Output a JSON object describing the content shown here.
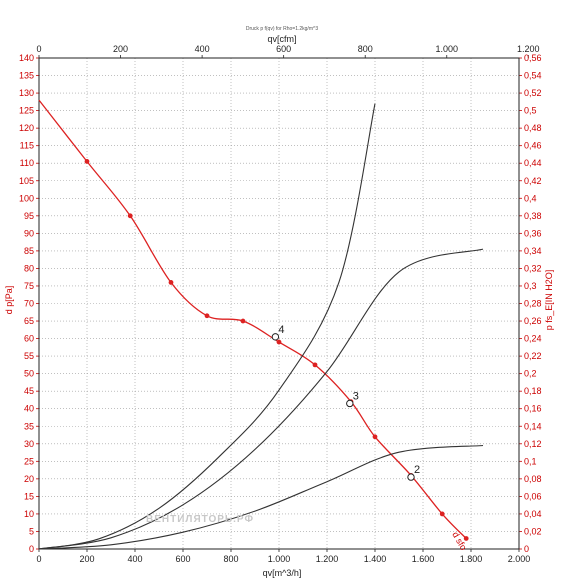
{
  "chart_data": {
    "type": "line",
    "title": "Druck p f(qv) for Rho=1.2kg/m^3",
    "xlabel_bottom": "qv[m^3/h]",
    "xlabel_top": "qv[cfm]",
    "ylabel_left": "d p[Pa]",
    "ylabel_right": "p fs_E[IN H2O]",
    "x_bottom_ticks": [
      "0",
      "200",
      "400",
      "600",
      "800",
      "1.000",
      "1.200",
      "1.400",
      "1.600",
      "1.800",
      "2.000"
    ],
    "x_top_ticks": [
      "0",
      "200",
      "400",
      "600",
      "800",
      "1.000",
      "1.200"
    ],
    "y_left_ticks": [
      "0",
      "5",
      "10",
      "15",
      "20",
      "25",
      "30",
      "35",
      "40",
      "45",
      "50",
      "55",
      "60",
      "65",
      "70",
      "75",
      "80",
      "85",
      "90",
      "95",
      "100",
      "105",
      "110",
      "115",
      "120",
      "125",
      "130",
      "135",
      "140"
    ],
    "y_right_ticks": [
      "0",
      "0,02",
      "0,04",
      "0,06",
      "0,08",
      "0,1",
      "0,12",
      "0,14",
      "0,16",
      "0,18",
      "0,2",
      "0,22",
      "0,24",
      "0,26",
      "0,28",
      "0,3",
      "0,32",
      "0,34",
      "0,36",
      "0,38",
      "0,4",
      "0,42",
      "0,44",
      "0,46",
      "0,48",
      "0,5",
      "0,52",
      "0,54",
      "0,56"
    ],
    "xlim": [
      0,
      2000
    ],
    "ylim": [
      0,
      140
    ],
    "grid": true,
    "series": [
      {
        "color": "#dd2222",
        "x": [
          0,
          200,
          380,
          550,
          700,
          850,
          1000,
          1150,
          1300,
          1400,
          1550,
          1680,
          1780
        ],
        "y": [
          128,
          110.5,
          95,
          76,
          66.5,
          65,
          59,
          52.5,
          42,
          32,
          21,
          10,
          3
        ],
        "markers": true
      },
      {
        "color": "#333333",
        "x": [
          0,
          250,
          500,
          750,
          1000,
          1250,
          1400
        ],
        "y": [
          0,
          2.9,
          11.6,
          26.3,
          45.3,
          76.1,
          127
        ]
      },
      {
        "color": "#333333",
        "x": [
          0,
          300,
          600,
          900,
          1200,
          1500,
          1850
        ],
        "y": [
          0,
          3.2,
          12.6,
          28.4,
          50.6,
          79,
          85.5
        ]
      },
      {
        "color": "#333333",
        "x": [
          0,
          300,
          600,
          900,
          1200,
          1500,
          1850
        ],
        "y": [
          0,
          1.2,
          4.8,
          10.8,
          19.2,
          27.6,
          29.5
        ]
      }
    ],
    "operating_points": [
      {
        "label": "4",
        "x": 985,
        "y": 60.5
      },
      {
        "label": "3",
        "x": 1295,
        "y": 41.5
      },
      {
        "label": "2",
        "x": 1550,
        "y": 20.5
      }
    ],
    "annotation": "d sfo",
    "watermark": "ВЕНТИЛЯТОРЬ.РФ"
  }
}
